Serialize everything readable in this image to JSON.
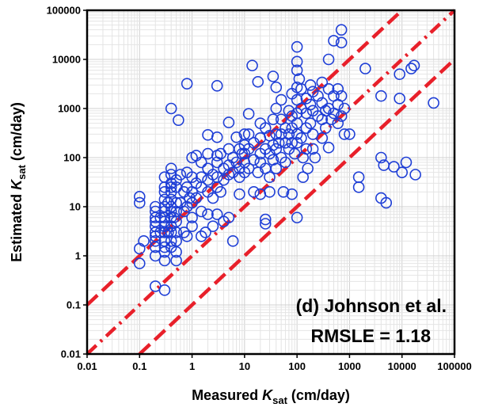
{
  "chart_data": {
    "type": "scatter",
    "title": "",
    "xlabel": {
      "pre": "Measured ",
      "var": "K",
      "sub": "sat",
      "post": " (cm/day)"
    },
    "ylabel": {
      "pre": "Estimated ",
      "var": "K",
      "sub": "sat",
      "post": " (cm/day)"
    },
    "xscale": "log",
    "yscale": "log",
    "xlim": [
      0.01,
      100000
    ],
    "ylim": [
      0.01,
      100000
    ],
    "xticks": [
      "0.01",
      "0.1",
      "1",
      "10",
      "100",
      "1000",
      "10000",
      "100000"
    ],
    "yticks": [
      "0.01",
      "0.1",
      "1",
      "10",
      "100",
      "1000",
      "10000",
      "100000"
    ],
    "grid": true,
    "annotations": [
      "(d) Johnson et al.",
      "RMSLE = 1.18"
    ],
    "marker": {
      "shape": "open-circle",
      "color": "#1f3fd6"
    },
    "reference_lines": [
      {
        "style": "dash-dot",
        "color": "#e8202a",
        "description": "1:1",
        "offset_decades": 0
      },
      {
        "style": "dashed",
        "color": "#e8202a",
        "description": "+1 order",
        "offset_decades": 1
      },
      {
        "style": "dashed",
        "color": "#e8202a",
        "description": "-1 order",
        "offset_decades": -1
      }
    ],
    "points": [
      [
        0.1,
        16
      ],
      [
        0.1,
        12
      ],
      [
        0.1,
        1.4
      ],
      [
        0.1,
        0.7
      ],
      [
        0.12,
        2
      ],
      [
        0.2,
        10
      ],
      [
        0.2,
        8
      ],
      [
        0.2,
        6
      ],
      [
        0.2,
        5
      ],
      [
        0.2,
        4
      ],
      [
        0.2,
        3
      ],
      [
        0.2,
        2.5
      ],
      [
        0.2,
        2
      ],
      [
        0.2,
        1.5
      ],
      [
        0.2,
        1
      ],
      [
        0.2,
        0.24
      ],
      [
        0.25,
        6
      ],
      [
        0.25,
        3
      ],
      [
        0.3,
        40
      ],
      [
        0.3,
        25
      ],
      [
        0.3,
        20
      ],
      [
        0.3,
        14
      ],
      [
        0.3,
        10
      ],
      [
        0.3,
        8
      ],
      [
        0.3,
        6
      ],
      [
        0.3,
        5
      ],
      [
        0.3,
        4
      ],
      [
        0.3,
        3
      ],
      [
        0.3,
        2
      ],
      [
        0.3,
        1.5
      ],
      [
        0.3,
        1.2
      ],
      [
        0.3,
        0.8
      ],
      [
        0.3,
        0.2
      ],
      [
        0.35,
        12
      ],
      [
        0.35,
        3
      ],
      [
        0.4,
        1000
      ],
      [
        0.4,
        60
      ],
      [
        0.4,
        45
      ],
      [
        0.4,
        30
      ],
      [
        0.4,
        25
      ],
      [
        0.4,
        20
      ],
      [
        0.4,
        14
      ],
      [
        0.4,
        10
      ],
      [
        0.4,
        8
      ],
      [
        0.4,
        6
      ],
      [
        0.4,
        4
      ],
      [
        0.4,
        3
      ],
      [
        0.4,
        2
      ],
      [
        0.4,
        1.5
      ],
      [
        0.45,
        6
      ],
      [
        0.5,
        35
      ],
      [
        0.5,
        25
      ],
      [
        0.5,
        12
      ],
      [
        0.5,
        8
      ],
      [
        0.5,
        5
      ],
      [
        0.5,
        3
      ],
      [
        0.5,
        2
      ],
      [
        0.5,
        1.2
      ],
      [
        0.5,
        0.8
      ],
      [
        0.55,
        580
      ],
      [
        0.6,
        45
      ],
      [
        0.6,
        12
      ],
      [
        0.7,
        20
      ],
      [
        0.7,
        8
      ],
      [
        0.7,
        3
      ],
      [
        0.8,
        3200
      ],
      [
        0.8,
        50
      ],
      [
        0.8,
        25
      ],
      [
        0.8,
        10
      ],
      [
        0.8,
        2.5
      ],
      [
        0.9,
        15
      ],
      [
        1,
        100
      ],
      [
        1,
        40
      ],
      [
        1,
        20
      ],
      [
        1,
        12
      ],
      [
        1,
        6
      ],
      [
        1,
        4
      ],
      [
        1.2,
        110
      ],
      [
        1.2,
        30
      ],
      [
        1.2,
        15
      ],
      [
        1.5,
        80
      ],
      [
        1.5,
        40
      ],
      [
        1.5,
        25
      ],
      [
        1.5,
        8
      ],
      [
        1.5,
        2.5
      ],
      [
        1.8,
        3
      ],
      [
        2,
        290
      ],
      [
        2,
        120
      ],
      [
        2,
        60
      ],
      [
        2,
        35
      ],
      [
        2,
        20
      ],
      [
        2,
        7
      ],
      [
        2.5,
        45
      ],
      [
        2.5,
        15
      ],
      [
        2.5,
        4
      ],
      [
        3,
        2900
      ],
      [
        3,
        260
      ],
      [
        3,
        110
      ],
      [
        3,
        80
      ],
      [
        3,
        40
      ],
      [
        3,
        25
      ],
      [
        3,
        7
      ],
      [
        3.5,
        20
      ],
      [
        3.5,
        120
      ],
      [
        4,
        60
      ],
      [
        4,
        35
      ],
      [
        4,
        5
      ],
      [
        5,
        520
      ],
      [
        5,
        150
      ],
      [
        5,
        70
      ],
      [
        5,
        45
      ],
      [
        5,
        6
      ],
      [
        6,
        100
      ],
      [
        6,
        50
      ],
      [
        7,
        260
      ],
      [
        7,
        80
      ],
      [
        8,
        150
      ],
      [
        8,
        60
      ],
      [
        8,
        40
      ],
      [
        8,
        18
      ],
      [
        9,
        120
      ],
      [
        10,
        300
      ],
      [
        10,
        180
      ],
      [
        10,
        120
      ],
      [
        10,
        80
      ],
      [
        10,
        50
      ],
      [
        12,
        780
      ],
      [
        12,
        300
      ],
      [
        12,
        150
      ],
      [
        12,
        60
      ],
      [
        14,
        7500
      ],
      [
        15,
        200
      ],
      [
        15,
        90
      ],
      [
        15,
        20
      ],
      [
        18,
        3500
      ],
      [
        18,
        50
      ],
      [
        20,
        500
      ],
      [
        20,
        250
      ],
      [
        20,
        120
      ],
      [
        20,
        80
      ],
      [
        20,
        18
      ],
      [
        25,
        400
      ],
      [
        25,
        150
      ],
      [
        25,
        60
      ],
      [
        25,
        4.5
      ],
      [
        30,
        280
      ],
      [
        30,
        120
      ],
      [
        30,
        40
      ],
      [
        30,
        20
      ],
      [
        35,
        4500
      ],
      [
        35,
        600
      ],
      [
        35,
        180
      ],
      [
        35,
        90
      ],
      [
        40,
        2700
      ],
      [
        40,
        1000
      ],
      [
        40,
        300
      ],
      [
        40,
        150
      ],
      [
        40,
        60
      ],
      [
        45,
        200
      ],
      [
        50,
        1500
      ],
      [
        50,
        600
      ],
      [
        50,
        300
      ],
      [
        50,
        100
      ],
      [
        55,
        20
      ],
      [
        60,
        400
      ],
      [
        60,
        200
      ],
      [
        60,
        80
      ],
      [
        70,
        900
      ],
      [
        70,
        300
      ],
      [
        70,
        150
      ],
      [
        80,
        2000
      ],
      [
        80,
        700
      ],
      [
        80,
        400
      ],
      [
        80,
        200
      ],
      [
        80,
        18
      ],
      [
        90,
        120
      ],
      [
        100,
        18000
      ],
      [
        100,
        9000
      ],
      [
        100,
        6000
      ],
      [
        100,
        2700
      ],
      [
        100,
        1500
      ],
      [
        100,
        800
      ],
      [
        100,
        500
      ],
      [
        100,
        300
      ],
      [
        100,
        200
      ],
      [
        100,
        6
      ],
      [
        110,
        4000
      ],
      [
        120,
        2500
      ],
      [
        120,
        1000
      ],
      [
        120,
        250
      ],
      [
        130,
        100
      ],
      [
        130,
        40
      ],
      [
        150,
        1600
      ],
      [
        150,
        800
      ],
      [
        150,
        400
      ],
      [
        150,
        150
      ],
      [
        160,
        60
      ],
      [
        180,
        3000
      ],
      [
        180,
        1200
      ],
      [
        180,
        500
      ],
      [
        200,
        2200
      ],
      [
        200,
        900
      ],
      [
        200,
        300
      ],
      [
        200,
        150
      ],
      [
        220,
        100
      ],
      [
        250,
        1800
      ],
      [
        250,
        700
      ],
      [
        300,
        3400
      ],
      [
        300,
        1300
      ],
      [
        300,
        600
      ],
      [
        300,
        250
      ],
      [
        350,
        900
      ],
      [
        350,
        400
      ],
      [
        400,
        10000
      ],
      [
        400,
        2500
      ],
      [
        400,
        1000
      ],
      [
        400,
        160
      ],
      [
        450,
        600
      ],
      [
        500,
        24000
      ],
      [
        500,
        1800
      ],
      [
        500,
        800
      ],
      [
        600,
        2500
      ],
      [
        600,
        1200
      ],
      [
        600,
        500
      ],
      [
        700,
        40000
      ],
      [
        700,
        22000
      ],
      [
        700,
        1800
      ],
      [
        700,
        700
      ],
      [
        800,
        1000
      ],
      [
        800,
        300
      ],
      [
        1000,
        300
      ],
      [
        1500,
        25
      ],
      [
        1500,
        40
      ],
      [
        4000,
        1800
      ],
      [
        4000,
        100
      ],
      [
        4000,
        15
      ],
      [
        4500,
        70
      ],
      [
        5000,
        12
      ],
      [
        7000,
        65
      ],
      [
        9000,
        5000
      ],
      [
        9000,
        1600
      ],
      [
        10000,
        50
      ],
      [
        12000,
        80
      ],
      [
        15000,
        6500
      ],
      [
        17000,
        7500
      ],
      [
        18000,
        45
      ],
      [
        40000,
        1300
      ],
      [
        2000,
        6500
      ],
      [
        25,
        5.5
      ],
      [
        6,
        2
      ]
    ]
  }
}
